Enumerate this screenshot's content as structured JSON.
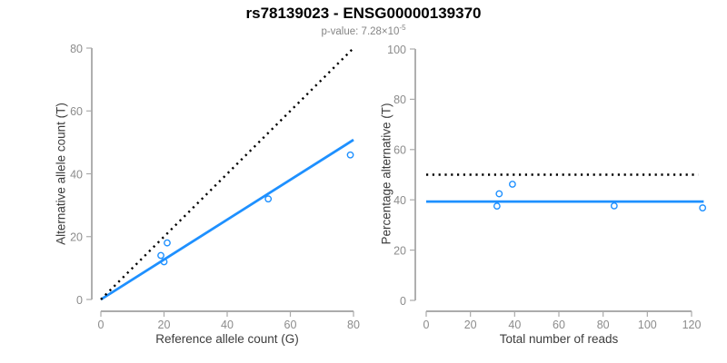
{
  "header": {
    "title": "rs78139023 - ENSG00000139370",
    "p_value_prefix": "p-value: 7.28×10",
    "p_value_exponent": "-5"
  },
  "colors": {
    "blue": "#1E90FF",
    "black": "#000000",
    "axis_line": "#7a7a7a",
    "tick_mark": "#ababab",
    "tick_label": "#8c8c8c",
    "axis_label": "#3c3c3c",
    "subtitle": "#858585"
  },
  "chart_data": [
    {
      "type": "scatter",
      "name": "allele-counts",
      "xlabel": "Reference allele count (G)",
      "ylabel": "Alternative allele count (T)",
      "xlim": [
        0,
        80
      ],
      "ylim": [
        0,
        80
      ],
      "xticks": [
        0,
        20,
        40,
        60,
        80
      ],
      "yticks": [
        0,
        20,
        40,
        60,
        80
      ],
      "grid": false,
      "points": [
        [
          19,
          14
        ],
        [
          20,
          12
        ],
        [
          21,
          18
        ],
        [
          53,
          32
        ],
        [
          79,
          46
        ]
      ],
      "lines": [
        {
          "name": "fit",
          "style": "solid",
          "color": "blue",
          "from": [
            0,
            0
          ],
          "to": [
            80,
            50.8
          ]
        },
        {
          "name": "identity",
          "style": "dotted",
          "color": "black",
          "from": [
            0,
            0
          ],
          "to": [
            80,
            80
          ]
        }
      ]
    },
    {
      "type": "scatter",
      "name": "percentage-alternative",
      "xlabel": "Total number of reads",
      "ylabel": "Percentage alternative (T)",
      "xlim": [
        0,
        125
      ],
      "ylim": [
        0,
        100
      ],
      "xticks": [
        0,
        20,
        40,
        60,
        80,
        100,
        120
      ],
      "yticks": [
        0,
        20,
        40,
        60,
        80,
        100
      ],
      "grid": false,
      "points": [
        [
          32,
          37.5
        ],
        [
          33,
          42.4
        ],
        [
          39,
          46.2
        ],
        [
          85,
          37.6
        ],
        [
          125,
          36.8
        ]
      ],
      "lines": [
        {
          "name": "fit",
          "style": "solid",
          "color": "blue",
          "from": [
            0,
            39.3
          ],
          "to": [
            125.5,
            39.3
          ]
        },
        {
          "name": "null-50-percent",
          "style": "dotted",
          "color": "black",
          "from": [
            0,
            50
          ],
          "to": [
            123,
            50
          ]
        }
      ]
    }
  ]
}
